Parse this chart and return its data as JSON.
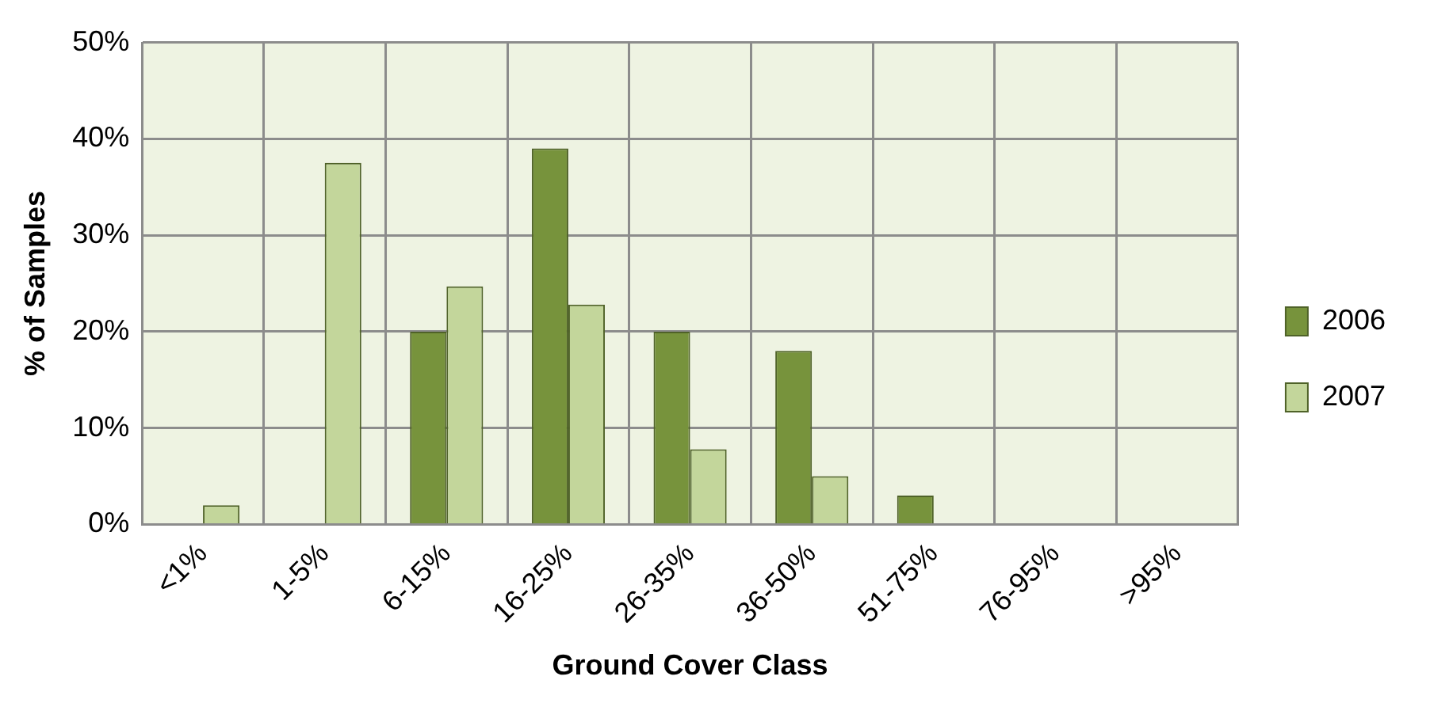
{
  "chart_data": {
    "type": "bar",
    "xlabel": "Ground Cover Class",
    "ylabel": "% of Samples",
    "categories": [
      "<1%",
      "1-5%",
      "6-15%",
      "16-25%",
      "26-35%",
      "36-50%",
      "51-75%",
      "76-95%",
      ">95%"
    ],
    "series": [
      {
        "name": "2006",
        "color": "#77933c",
        "values": [
          0,
          0,
          20,
          39,
          20,
          18,
          3,
          0,
          0
        ]
      },
      {
        "name": "2007",
        "color": "#c3d69b",
        "values": [
          2,
          37.5,
          24.7,
          22.8,
          7.8,
          5,
          0,
          0,
          0
        ]
      }
    ],
    "ylim": [
      0,
      50
    ],
    "yticks": [
      {
        "value": 0,
        "label": "0%"
      },
      {
        "value": 10,
        "label": "10%"
      },
      {
        "value": 20,
        "label": "20%"
      },
      {
        "value": 30,
        "label": "30%"
      },
      {
        "value": 40,
        "label": "40%"
      },
      {
        "value": 50,
        "label": "50%"
      }
    ],
    "grid": true,
    "legend": "right"
  }
}
